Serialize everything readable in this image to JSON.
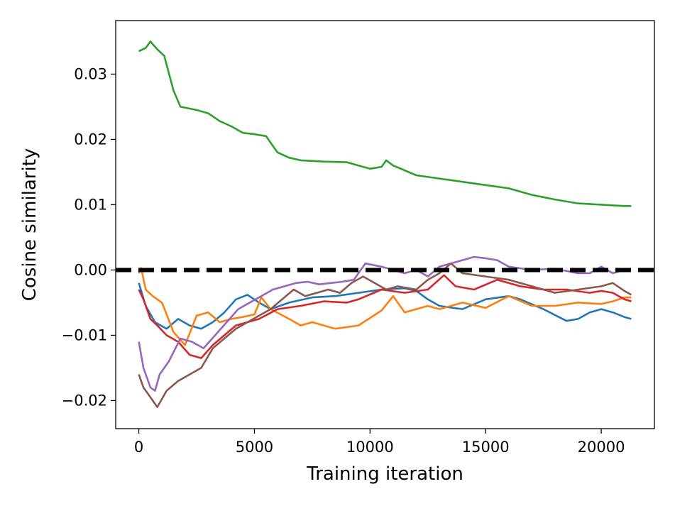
{
  "chart_data": {
    "type": "line",
    "title": "",
    "xlabel": "Training iteration",
    "ylabel": "Cosine similarity",
    "xlim": [
      -1000,
      22300
    ],
    "ylim": [
      -0.0243,
      0.0382
    ],
    "xticks": [
      0,
      5000,
      10000,
      15000,
      20000
    ],
    "xtick_labels": [
      "0",
      "5000",
      "10000",
      "15000",
      "20000"
    ],
    "yticks": [
      -0.02,
      -0.01,
      0.0,
      0.01,
      0.02,
      0.03
    ],
    "ytick_labels": [
      "−0.02",
      "−0.01",
      "0.00",
      "0.01",
      "0.02",
      "0.03"
    ],
    "grid": false,
    "legend": "none",
    "reference_line": {
      "y": 0.0,
      "style": "dashed",
      "color": "#000000"
    },
    "series": [
      {
        "color": "#2ca02c",
        "x": [
          0,
          300,
          500,
          800,
          1100,
          1500,
          1800,
          2500,
          3000,
          3500,
          4000,
          4500,
          5000,
          5500,
          6000,
          6500,
          7000,
          8000,
          9000,
          9500,
          10000,
          10500,
          10700,
          11000,
          12000,
          13000,
          14000,
          15000,
          16000,
          17000,
          18000,
          19000,
          20000,
          21000,
          21300
        ],
        "y": [
          0.0335,
          0.034,
          0.035,
          0.0338,
          0.0328,
          0.0275,
          0.025,
          0.0245,
          0.024,
          0.0228,
          0.022,
          0.021,
          0.0208,
          0.0205,
          0.018,
          0.0172,
          0.0168,
          0.0166,
          0.0165,
          0.016,
          0.0155,
          0.0158,
          0.0168,
          0.016,
          0.0145,
          0.014,
          0.0135,
          0.013,
          0.0125,
          0.0115,
          0.0108,
          0.0102,
          0.01,
          0.0098,
          0.0098
        ]
      },
      {
        "color": "#1f77b4",
        "x": [
          0,
          300,
          700,
          1200,
          1700,
          2200,
          2700,
          3200,
          3700,
          4200,
          4700,
          5200,
          5700,
          6500,
          7500,
          8500,
          9500,
          10500,
          11500,
          12000,
          12500,
          13000,
          14000,
          15000,
          16000,
          16500,
          17500,
          18500,
          19000,
          19500,
          20000,
          20500,
          21000,
          21300
        ],
        "y": [
          -0.002,
          -0.0055,
          -0.008,
          -0.009,
          -0.0075,
          -0.0085,
          -0.009,
          -0.008,
          -0.0065,
          -0.0045,
          -0.0038,
          -0.005,
          -0.006,
          -0.005,
          -0.0042,
          -0.004,
          -0.0035,
          -0.003,
          -0.0028,
          -0.0032,
          -0.0045,
          -0.0055,
          -0.006,
          -0.0045,
          -0.004,
          -0.0045,
          -0.006,
          -0.0078,
          -0.0075,
          -0.0065,
          -0.006,
          -0.0065,
          -0.0072,
          -0.0075
        ]
      },
      {
        "color": "#ff7f0e",
        "x": [
          0,
          100,
          300,
          600,
          1000,
          1500,
          2000,
          2500,
          3000,
          3500,
          4000,
          4500,
          5000,
          5300,
          5700,
          6500,
          7000,
          7500,
          8500,
          9500,
          10500,
          11000,
          11500,
          12500,
          13000,
          14000,
          15000,
          16000,
          17000,
          18000,
          19000,
          20000,
          20500,
          21000,
          21300
        ],
        "y": [
          -0.0005,
          0.0003,
          -0.003,
          -0.004,
          -0.005,
          -0.0095,
          -0.0115,
          -0.007,
          -0.0065,
          -0.008,
          -0.0075,
          -0.0072,
          -0.0068,
          -0.0042,
          -0.006,
          -0.0075,
          -0.0085,
          -0.008,
          -0.009,
          -0.0085,
          -0.0062,
          -0.004,
          -0.0065,
          -0.0055,
          -0.006,
          -0.005,
          -0.0058,
          -0.004,
          -0.0055,
          -0.0055,
          -0.005,
          -0.0052,
          -0.0048,
          -0.0042,
          -0.0042
        ]
      },
      {
        "color": "#d62728",
        "x": [
          0,
          200,
          500,
          800,
          1200,
          1700,
          2200,
          2700,
          3200,
          3700,
          4200,
          4700,
          5200,
          6000,
          7000,
          8000,
          9000,
          9500,
          10500,
          11500,
          12500,
          13200,
          13700,
          14500,
          15500,
          16500,
          17500,
          18500,
          19500,
          20000,
          20500,
          21000,
          21300
        ],
        "y": [
          -0.003,
          -0.0045,
          -0.0075,
          -0.0085,
          -0.01,
          -0.011,
          -0.013,
          -0.0135,
          -0.0115,
          -0.01,
          -0.0085,
          -0.008,
          -0.0075,
          -0.006,
          -0.0055,
          -0.0048,
          -0.005,
          -0.0045,
          -0.003,
          -0.0035,
          -0.003,
          -0.0008,
          -0.0025,
          -0.003,
          -0.0015,
          -0.0025,
          -0.003,
          -0.003,
          -0.0035,
          -0.0032,
          -0.0035,
          -0.0045,
          -0.0048
        ]
      },
      {
        "color": "#9467bd",
        "x": [
          0,
          200,
          500,
          700,
          900,
          1300,
          1800,
          2300,
          2800,
          3300,
          3800,
          4300,
          4800,
          5300,
          5800,
          6300,
          6800,
          7300,
          7800,
          8300,
          8800,
          9300,
          9800,
          10500,
          11500,
          12000,
          12500,
          13000,
          14000,
          14500,
          15000,
          15500,
          16000,
          17000,
          18000,
          19000,
          19500,
          20000,
          20500,
          21000
        ],
        "y": [
          -0.011,
          -0.015,
          -0.018,
          -0.0185,
          -0.016,
          -0.014,
          -0.0105,
          -0.011,
          -0.012,
          -0.01,
          -0.008,
          -0.006,
          -0.005,
          -0.004,
          -0.003,
          -0.0025,
          -0.002,
          -0.0018,
          -0.0022,
          -0.002,
          -0.0018,
          -0.0015,
          0.001,
          0.0005,
          -0.0005,
          0.0,
          -0.001,
          0.0005,
          0.0015,
          0.002,
          0.0018,
          0.0015,
          0.0005,
          0.0,
          0.0002,
          -0.0005,
          -0.0005,
          0.0005,
          -0.0005,
          0.0
        ]
      },
      {
        "color": "#8c564b",
        "x": [
          0,
          200,
          500,
          800,
          1200,
          1700,
          2200,
          2700,
          3200,
          3700,
          4200,
          4700,
          5200,
          5700,
          6200,
          6700,
          7200,
          7700,
          8200,
          8700,
          9200,
          9700,
          10200,
          10700,
          11200,
          12000,
          12500,
          13000,
          13500,
          14000,
          15000,
          16000,
          17000,
          18000,
          19000,
          20000,
          20500,
          21000,
          21300
        ],
        "y": [
          -0.016,
          -0.018,
          -0.0195,
          -0.021,
          -0.0185,
          -0.017,
          -0.016,
          -0.015,
          -0.012,
          -0.0105,
          -0.009,
          -0.008,
          -0.007,
          -0.006,
          -0.0045,
          -0.003,
          -0.004,
          -0.0035,
          -0.003,
          -0.0035,
          -0.002,
          -0.001,
          -0.002,
          -0.003,
          -0.0025,
          -0.003,
          -0.0015,
          -0.0005,
          0.001,
          -0.0005,
          -0.001,
          -0.0015,
          -0.0025,
          -0.0035,
          -0.003,
          -0.0025,
          -0.002,
          -0.0032,
          -0.0038
        ]
      }
    ]
  }
}
